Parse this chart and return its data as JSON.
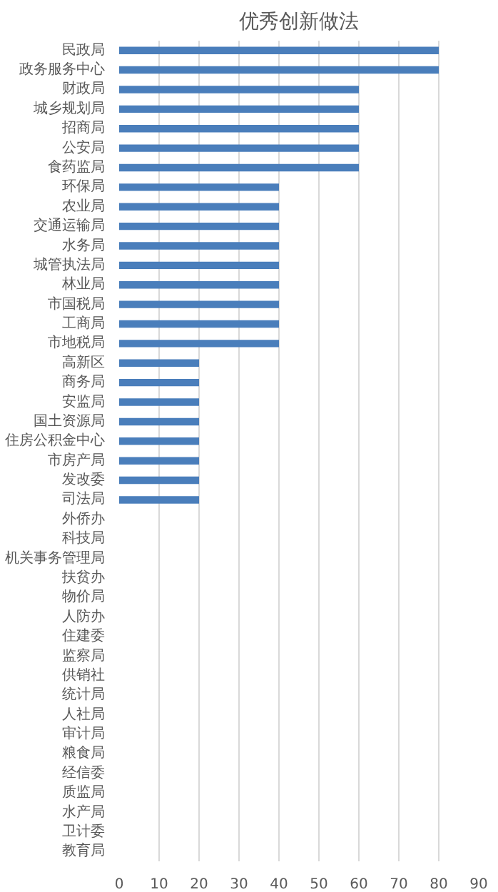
{
  "chart_data": {
    "type": "bar",
    "orientation": "horizontal",
    "title": "优秀创新做法",
    "categories": [
      "民政局",
      "政务服务中心",
      "财政局",
      "城乡规划局",
      "招商局",
      "公安局",
      "食药监局",
      "环保局",
      "农业局",
      "交通运输局",
      "水务局",
      "城管执法局",
      "林业局",
      "市国税局",
      "工商局",
      "市地税局",
      "高新区",
      "商务局",
      "安监局",
      "国土资源局",
      "住房公积金中心",
      "市房产局",
      "发改委",
      "司法局",
      "外侨办",
      "科技局",
      "机关事务管理局",
      "扶贫办",
      "物价局",
      "人防办",
      "住建委",
      "监察局",
      "供销社",
      "统计局",
      "人社局",
      "审计局",
      "粮食局",
      "经信委",
      "质监局",
      "水产局",
      "卫计委",
      "教育局"
    ],
    "values": [
      80,
      80,
      60,
      60,
      60,
      60,
      60,
      40,
      40,
      40,
      40,
      40,
      40,
      40,
      40,
      40,
      20,
      20,
      20,
      20,
      20,
      20,
      20,
      20,
      0,
      0,
      0,
      0,
      0,
      0,
      0,
      0,
      0,
      0,
      0,
      0,
      0,
      0,
      0,
      0,
      0,
      0
    ],
    "color": "#4a7ebb",
    "xlim": [
      0,
      90
    ],
    "xticks": [
      0,
      10,
      20,
      30,
      40,
      50,
      60,
      70,
      80,
      90
    ],
    "grid": "x"
  }
}
